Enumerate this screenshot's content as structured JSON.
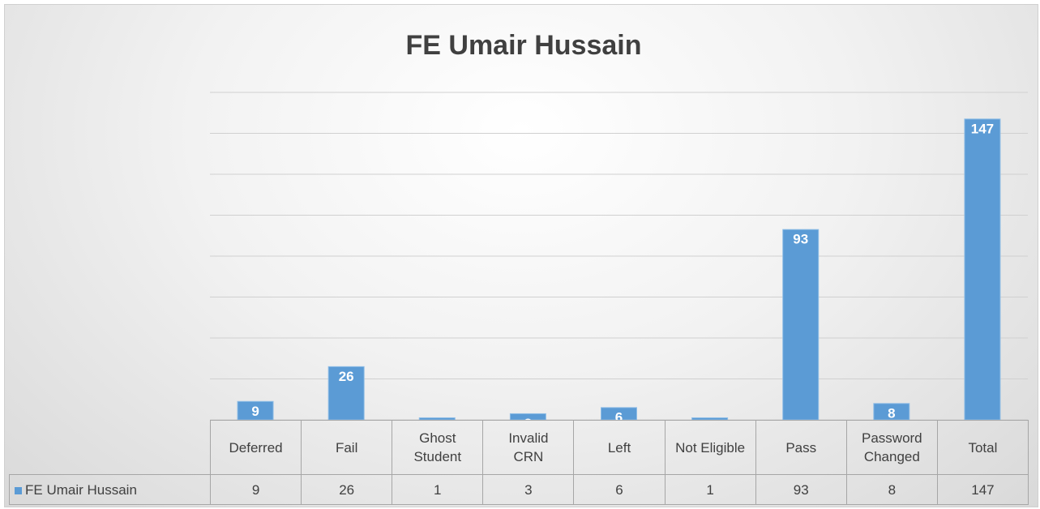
{
  "chart_data": {
    "type": "bar",
    "title": "FE Umair Hussain",
    "categories": [
      "Deferred",
      "Fail",
      "Ghost Student",
      "Invalid CRN",
      "Left",
      "Not Eligible",
      "Pass",
      "Password Changed",
      "Total"
    ],
    "series": [
      {
        "name": "FE Umair Hussain",
        "color": "#5b9bd5",
        "values": [
          9,
          26,
          1,
          3,
          6,
          1,
          93,
          8,
          147
        ]
      }
    ],
    "ylim": [
      0,
      160
    ],
    "yticks": [
      0,
      20,
      40,
      60,
      80,
      100,
      120,
      140,
      160
    ],
    "grid": true
  }
}
